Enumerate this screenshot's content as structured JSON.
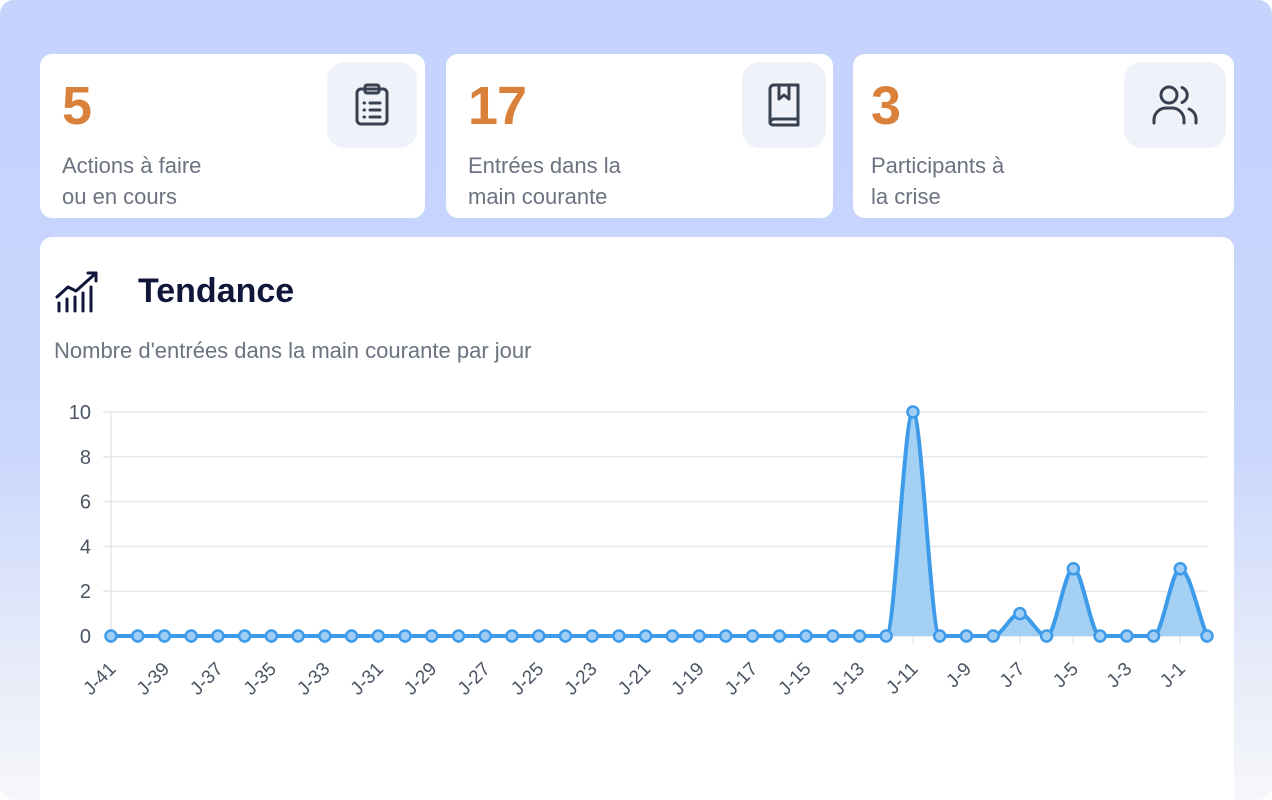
{
  "stats": [
    {
      "value": "5",
      "label_line1": "Actions à faire",
      "label_line2": "ou en cours",
      "icon": "clipboard-list-icon"
    },
    {
      "value": "17",
      "label_line1": "Entrées dans la",
      "label_line2": "main courante",
      "icon": "book-icon"
    },
    {
      "value": "3",
      "label_line1": "Participants à",
      "label_line2": "la crise",
      "icon": "users-icon"
    }
  ],
  "trend": {
    "title": "Tendance",
    "subtitle": "Nombre d'entrées dans la main courante par jour",
    "icon": "trending-bars-icon"
  },
  "colors": {
    "accent_value": "#d9803b",
    "line": "#3d9be9",
    "fill": "#9fcdf3",
    "background": "#c5d3fd"
  },
  "chart_data": {
    "type": "area",
    "x": [
      "J-41",
      "J-40",
      "J-39",
      "J-38",
      "J-37",
      "J-36",
      "J-35",
      "J-34",
      "J-33",
      "J-32",
      "J-31",
      "J-30",
      "J-29",
      "J-28",
      "J-27",
      "J-26",
      "J-25",
      "J-24",
      "J-23",
      "J-22",
      "J-21",
      "J-20",
      "J-19",
      "J-18",
      "J-17",
      "J-16",
      "J-15",
      "J-14",
      "J-13",
      "J-12",
      "J-11",
      "J-10",
      "J-9",
      "J-8",
      "J-7",
      "J-6",
      "J-5",
      "J-4",
      "J-3",
      "J-2",
      "J-1",
      "J-0"
    ],
    "x_tick_labels": [
      "J-41",
      "J-39",
      "J-37",
      "J-35",
      "J-33",
      "J-31",
      "J-29",
      "J-27",
      "J-25",
      "J-23",
      "J-21",
      "J-19",
      "J-17",
      "J-15",
      "J-13",
      "J-11",
      "J-9",
      "J-7",
      "J-5",
      "J-3",
      "J-1"
    ],
    "values": [
      0,
      0,
      0,
      0,
      0,
      0,
      0,
      0,
      0,
      0,
      0,
      0,
      0,
      0,
      0,
      0,
      0,
      0,
      0,
      0,
      0,
      0,
      0,
      0,
      0,
      0,
      0,
      0,
      0,
      0,
      10,
      0,
      0,
      0,
      1,
      0,
      3,
      0,
      0,
      0,
      3,
      0
    ],
    "y_ticks": [
      "0",
      "2",
      "4",
      "6",
      "8",
      "10"
    ],
    "ylim": [
      0,
      10
    ],
    "grid": true,
    "legend": "none"
  }
}
